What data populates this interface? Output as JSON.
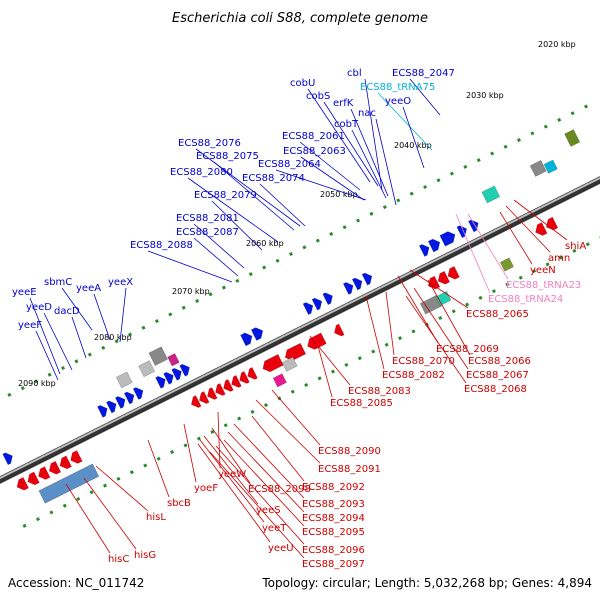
{
  "title": "Escherichia coli S88, complete genome",
  "accession": "Accession: NC_011742",
  "topology": "Topology: circular; Length: 5,032,268 bp; Genes: 4,894",
  "colors": {
    "forward_gene": "#e8000c",
    "reverse_gene": "#0018e0",
    "label_forward": "#0000cc",
    "label_reverse": "#cc0000",
    "trna_forward": "#00b4d8",
    "trna_reverse": "#f080c0",
    "scale": "#2b8a2b",
    "backbone": "#555555",
    "teal_block": "#20d0b0"
  },
  "scale_ticks": [
    {
      "label": "2020 kbp"
    },
    {
      "label": "2030 kbp"
    },
    {
      "label": "2040 kbp"
    },
    {
      "label": "2050 kbp"
    },
    {
      "label": "2060 kbp"
    },
    {
      "label": "2070 kbp"
    },
    {
      "label": "2080 kbp"
    },
    {
      "label": "2090 kbp"
    }
  ],
  "upper_labels": [
    {
      "text": "cbl"
    },
    {
      "text": "ECS88_2047"
    },
    {
      "text": "cobU"
    },
    {
      "text": "ECS88_tRNA75"
    },
    {
      "text": "cobS"
    },
    {
      "text": "yeeO"
    },
    {
      "text": "erfK"
    },
    {
      "text": "nac"
    },
    {
      "text": "cobT"
    },
    {
      "text": "ECS88_2061"
    },
    {
      "text": "ECS88_2076"
    },
    {
      "text": "ECS88_2063"
    },
    {
      "text": "ECS88_2075"
    },
    {
      "text": "ECS88_2064"
    },
    {
      "text": "ECS88_2080"
    },
    {
      "text": "ECS88_2074"
    },
    {
      "text": "ECS88_2079"
    },
    {
      "text": "ECS88_2081"
    },
    {
      "text": "ECS88_2087"
    },
    {
      "text": "ECS88_2088"
    },
    {
      "text": "sbmC"
    },
    {
      "text": "yeeX"
    },
    {
      "text": "yeeE"
    },
    {
      "text": "yeeA"
    },
    {
      "text": "yeeD"
    },
    {
      "text": "dacD"
    },
    {
      "text": "yeeF"
    }
  ],
  "lower_labels": [
    {
      "text": "shiA"
    },
    {
      "text": "amn"
    },
    {
      "text": "yeeN"
    },
    {
      "text": "ECS88_tRNA23"
    },
    {
      "text": "ECS88_tRNA24"
    },
    {
      "text": "ECS88_2065"
    },
    {
      "text": "ECS88_2069"
    },
    {
      "text": "ECS88_2066"
    },
    {
      "text": "ECS88_2070"
    },
    {
      "text": "ECS88_2067"
    },
    {
      "text": "ECS88_2082"
    },
    {
      "text": "ECS88_2068"
    },
    {
      "text": "ECS88_2083"
    },
    {
      "text": "ECS88_2085"
    },
    {
      "text": "ECS88_2090"
    },
    {
      "text": "ECS88_2091"
    },
    {
      "text": "yeeW"
    },
    {
      "text": "ECS88_2092"
    },
    {
      "text": "yoeF"
    },
    {
      "text": "ECS88_2098"
    },
    {
      "text": "ECS88_2093"
    },
    {
      "text": "sbcB"
    },
    {
      "text": "yeeS"
    },
    {
      "text": "ECS88_2094"
    },
    {
      "text": "hisL"
    },
    {
      "text": "yeeT"
    },
    {
      "text": "ECS88_2095"
    },
    {
      "text": "yeeU"
    },
    {
      "text": "ECS88_2096"
    },
    {
      "text": "hisG"
    },
    {
      "text": "hisC"
    },
    {
      "text": "ECS88_2097"
    }
  ]
}
